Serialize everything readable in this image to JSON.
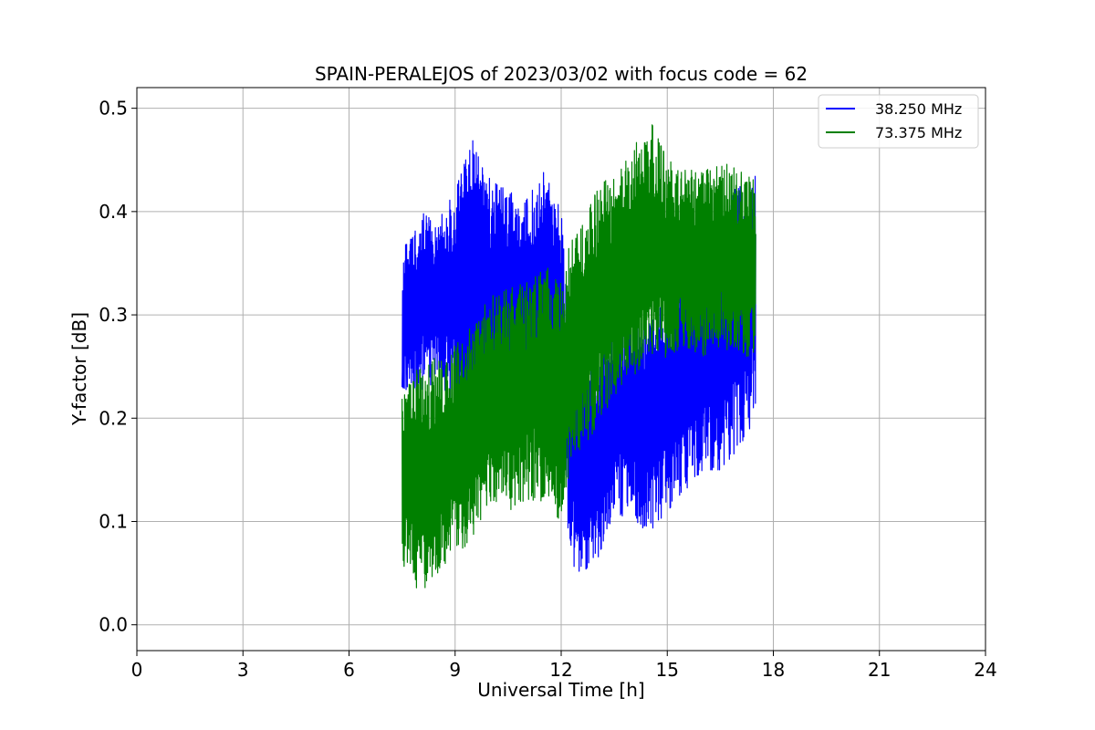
{
  "chart_data": {
    "type": "line",
    "title": "SPAIN-PERALEJOS of 2023/03/02 with focus code = 62",
    "xlabel": "Universal Time [h]",
    "ylabel": "Y-factor [dB]",
    "xlim": [
      0,
      24
    ],
    "ylim": [
      -0.025,
      0.52
    ],
    "xticks": [
      0,
      3,
      6,
      9,
      12,
      15,
      18,
      21,
      24
    ],
    "xtick_labels": [
      "0",
      "3",
      "6",
      "9",
      "12",
      "15",
      "18",
      "21",
      "24"
    ],
    "yticks": [
      0.0,
      0.1,
      0.2,
      0.3,
      0.4,
      0.5
    ],
    "ytick_labels": [
      "0.0",
      "0.1",
      "0.2",
      "0.3",
      "0.4",
      "0.5"
    ],
    "grid": true,
    "legend_position": "top-right",
    "series": [
      {
        "name": "38.250 MHz",
        "color": "#0000ff",
        "x": [
          7.5,
          8.0,
          8.5,
          9.0,
          9.5,
          10.0,
          10.5,
          11.0,
          11.5,
          12.0,
          12.25,
          12.5,
          13.0,
          13.5,
          14.0,
          14.5,
          15.0,
          15.5,
          16.0,
          16.5,
          17.0,
          17.5
        ],
        "y_min": [
          0.23,
          0.22,
          0.24,
          0.21,
          0.19,
          0.18,
          0.19,
          0.2,
          0.21,
          0.18,
          0.06,
          0.05,
          0.06,
          0.11,
          0.1,
          0.09,
          0.11,
          0.13,
          0.15,
          0.15,
          0.17,
          0.2
        ],
        "y_max": [
          0.36,
          0.4,
          0.39,
          0.42,
          0.47,
          0.43,
          0.42,
          0.41,
          0.44,
          0.4,
          0.28,
          0.26,
          0.26,
          0.29,
          0.31,
          0.3,
          0.32,
          0.34,
          0.36,
          0.38,
          0.43,
          0.44
        ]
      },
      {
        "name": "73.375 MHz",
        "color": "#008000",
        "x": [
          7.5,
          8.0,
          8.5,
          9.0,
          9.5,
          10.0,
          10.5,
          11.0,
          11.5,
          12.0,
          12.25,
          12.5,
          13.0,
          13.5,
          14.0,
          14.5,
          15.0,
          15.5,
          16.0,
          16.5,
          17.0,
          17.5
        ],
        "y_min": [
          0.06,
          0.03,
          0.05,
          0.07,
          0.08,
          0.12,
          0.11,
          0.12,
          0.12,
          0.1,
          0.15,
          0.16,
          0.19,
          0.22,
          0.24,
          0.25,
          0.26,
          0.27,
          0.26,
          0.27,
          0.26,
          0.26
        ],
        "y_max": [
          0.23,
          0.25,
          0.26,
          0.27,
          0.29,
          0.32,
          0.33,
          0.33,
          0.35,
          0.33,
          0.37,
          0.38,
          0.42,
          0.44,
          0.46,
          0.49,
          0.45,
          0.44,
          0.44,
          0.45,
          0.44,
          0.43
        ]
      }
    ]
  }
}
